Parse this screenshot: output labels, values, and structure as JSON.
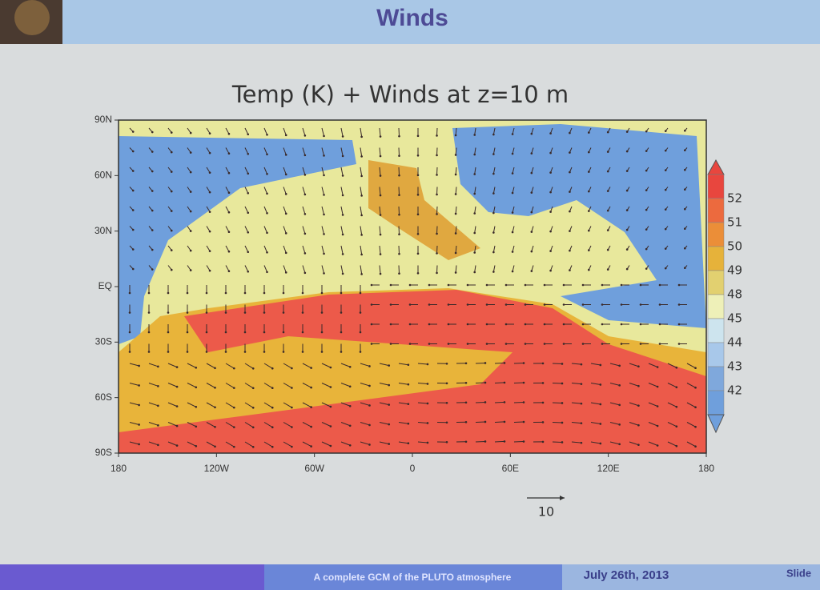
{
  "slide": {
    "title": "Winds"
  },
  "plot": {
    "title": "Temp (K) + Winds at z=10 m",
    "y_ticks": [
      "90N",
      "60N",
      "30N",
      "EQ",
      "30S",
      "60S",
      "90S"
    ],
    "x_ticks": [
      "180",
      "120W",
      "60W",
      "0",
      "60E",
      "120E",
      "180"
    ],
    "colorbar_levels": [
      "52",
      "51",
      "50",
      "49",
      "48",
      "45",
      "44",
      "43",
      "42"
    ],
    "reference_vector": "10"
  },
  "footer": {
    "subject": "A complete GCM of the PLUTO atmosphere",
    "date": "July 26th, 2013",
    "slide": "Slide"
  }
}
